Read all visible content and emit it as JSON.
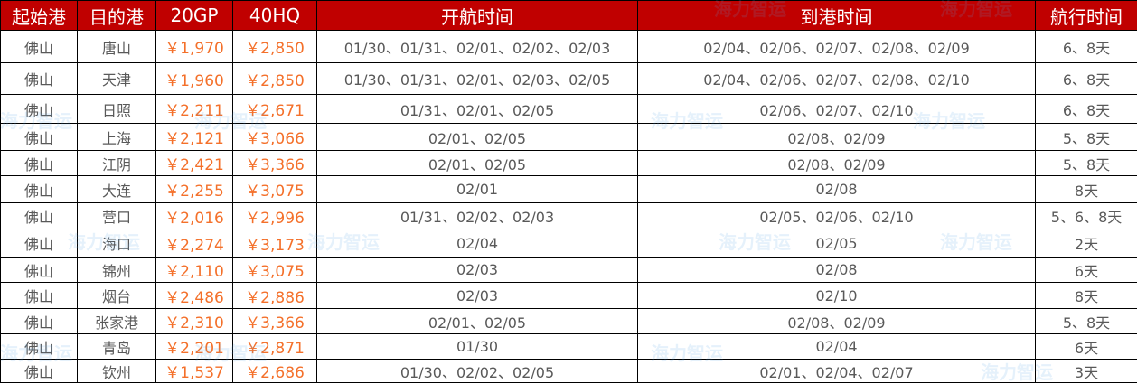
{
  "headers": [
    "起始港",
    "目的港",
    "20GP",
    "40HQ",
    "开航时间",
    "到港时间",
    "航行时间"
  ],
  "rows": [
    [
      "佛山",
      "唐山",
      "￥1,970",
      "￥2,850",
      "01/30、01/31、02/01、02/02、02/03",
      "02/04、02/06、02/07、02/08、02/09",
      "6、8天"
    ],
    [
      "佛山",
      "天津",
      "￥1,960",
      "￥2,850",
      "01/30、01/31、02/01、02/03、02/05",
      "02/04、02/06、02/07、02/08、02/10",
      "6、8天"
    ],
    [
      "佛山",
      "日照",
      "￥2,211",
      "￥2,671",
      "01/31、02/01、02/05",
      "02/06、02/07、02/10",
      "6、8天"
    ],
    [
      "佛山",
      "上海",
      "￥2,121",
      "￥3,066",
      "02/01、02/05",
      "02/08、02/09",
      "5、8天"
    ],
    [
      "佛山",
      "江阴",
      "￥2,421",
      "￥3,366",
      "02/01、02/05",
      "02/08、02/09",
      "5、8天"
    ],
    [
      "佛山",
      "大连",
      "￥2,255",
      "￥3,075",
      "02/01",
      "02/08",
      "8天"
    ],
    [
      "佛山",
      "营口",
      "￥2,016",
      "￥2,996",
      "01/31、02/02、02/03",
      "02/05、02/06、02/10",
      "5、6、8天"
    ],
    [
      "佛山",
      "海口",
      "￥2,274",
      "￥3,173",
      "02/04",
      "02/05",
      "2天"
    ],
    [
      "佛山",
      "锦州",
      "￥2,110",
      "￥3,075",
      "02/03",
      "02/08",
      "6天"
    ],
    [
      "佛山",
      "烟台",
      "￥2,486",
      "￥2,886",
      "02/03",
      "02/10",
      "8天"
    ],
    [
      "佛山",
      "张家港",
      "￥2,310",
      "￥3,366",
      "02/01、02/05",
      "02/08、02/09",
      "5、8天"
    ],
    [
      "佛山",
      "青岛",
      "￥2,201",
      "￥2,871",
      "01/30",
      "02/04",
      "6天"
    ],
    [
      "佛山",
      "钦州",
      "￥1,537",
      "￥2,686",
      "01/30、02/02、02/05",
      "02/01、02/04、02/07",
      "3天"
    ]
  ],
  "watermark": "海力智运",
  "colors": {
    "header_bg": "#c00000",
    "price": "#f4702a",
    "text": "#595959"
  }
}
